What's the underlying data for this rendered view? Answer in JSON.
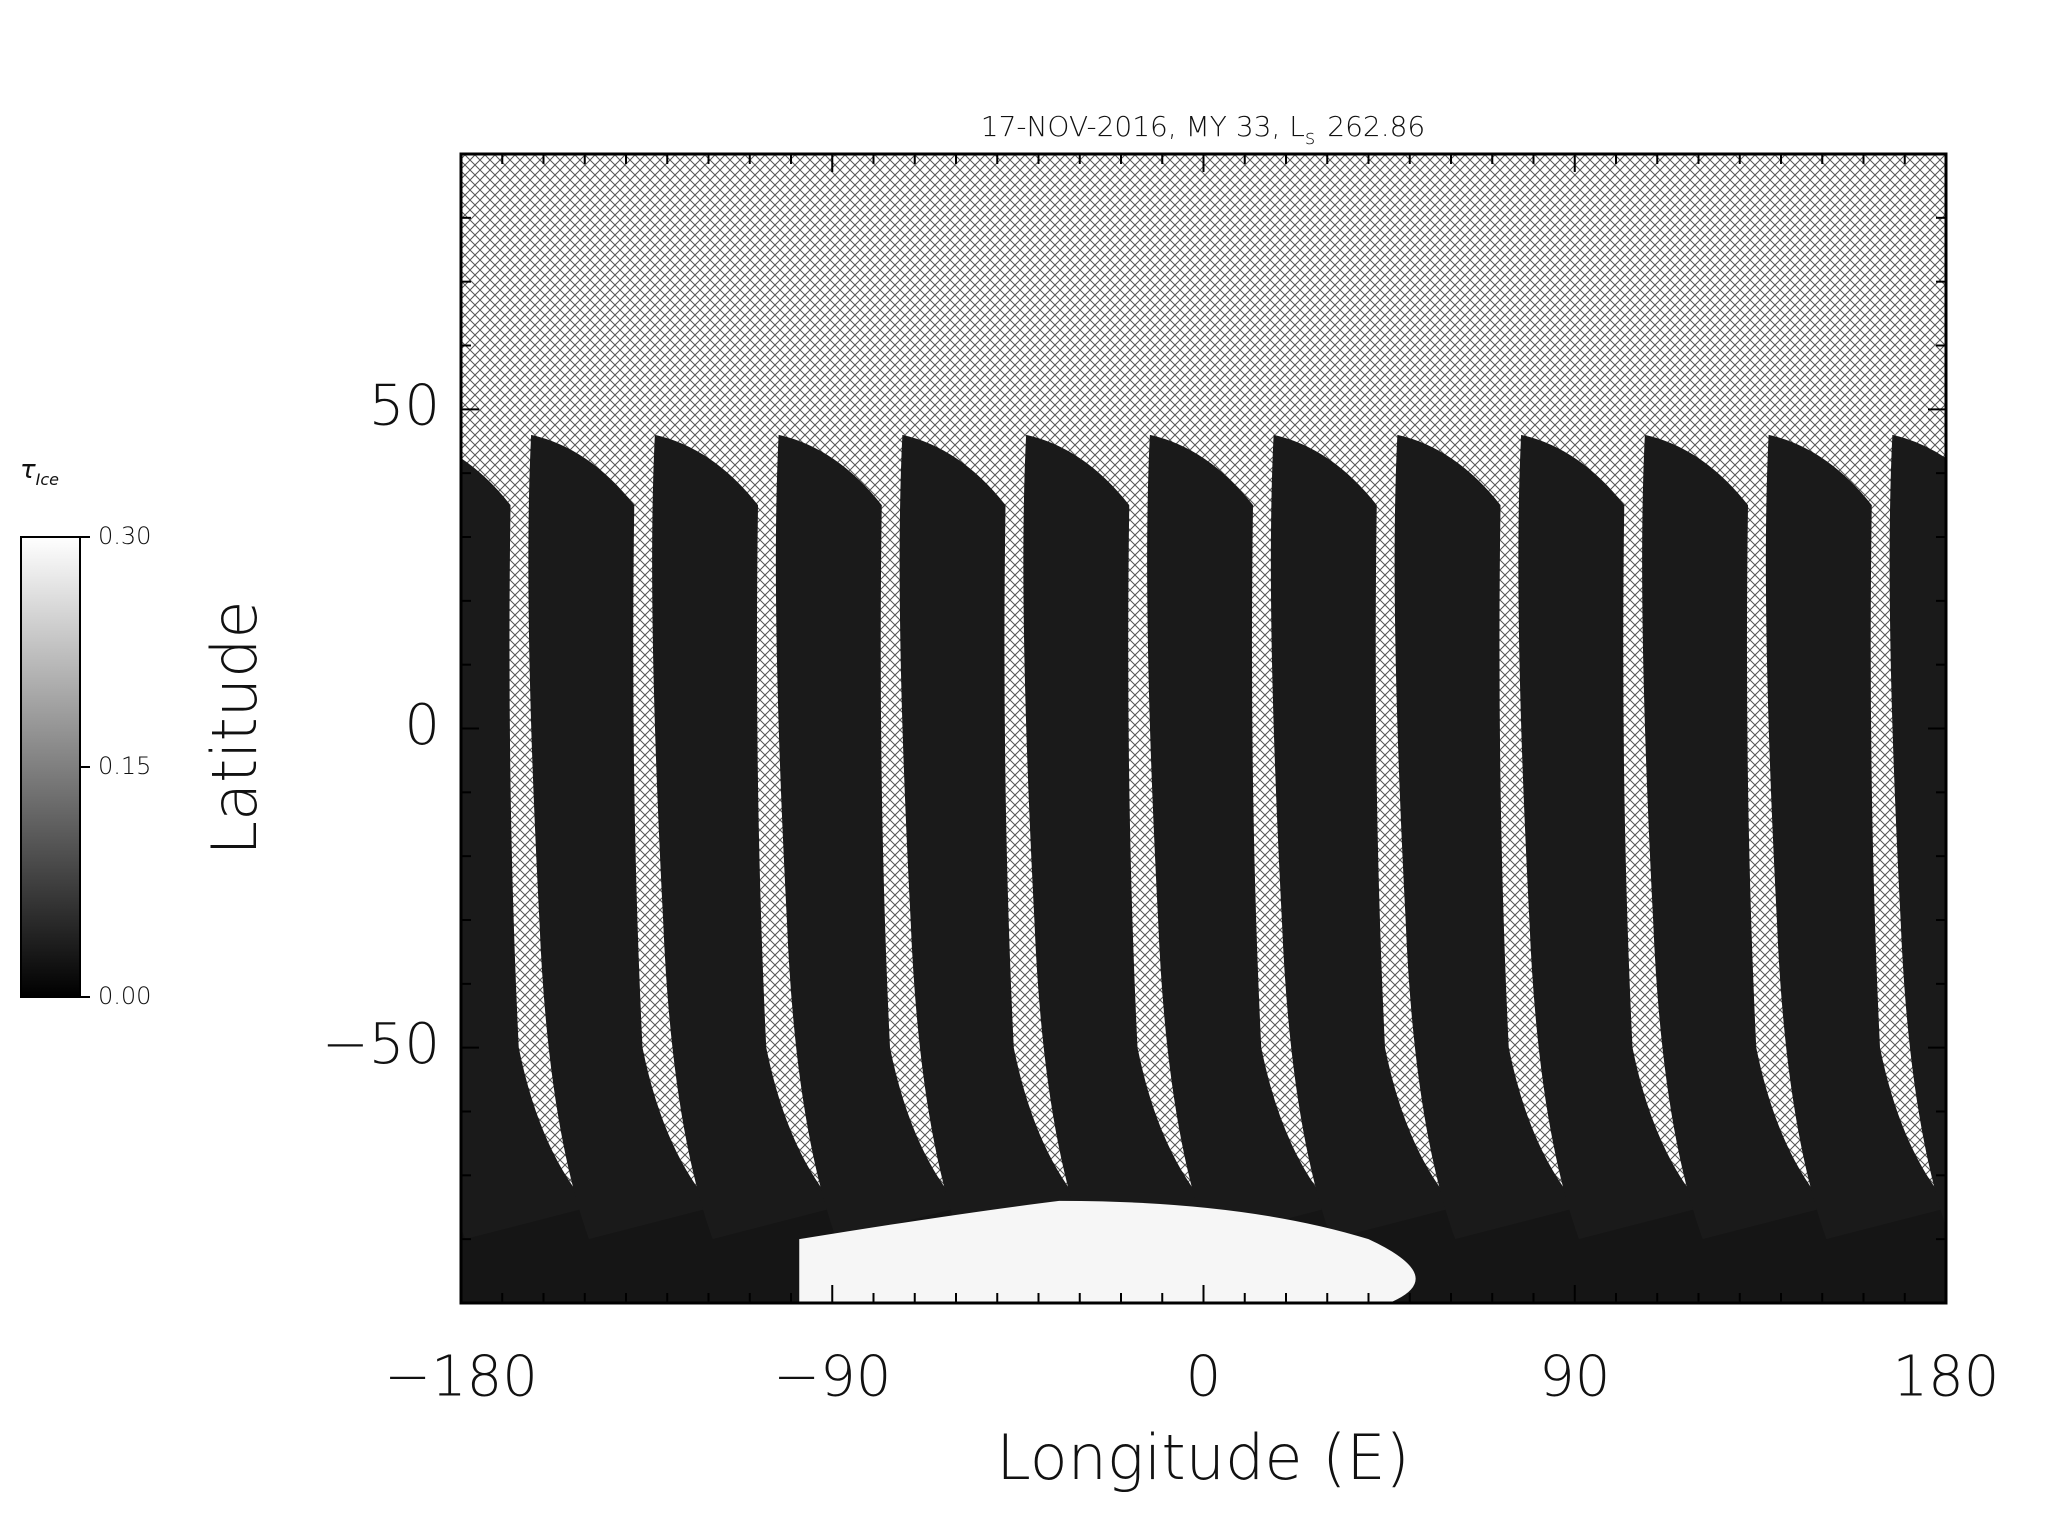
{
  "chart_data": {
    "type": "heatmap",
    "title": "17-NOV-2016, MY 33,  L",
    "title_subscript": "s",
    "title_suffix": "262.86",
    "x_label": "Longitude (E)",
    "y_label": "Latitude",
    "xlim": [
      -180,
      180
    ],
    "xticks": [
      {
        "value": -180,
        "label": "−180"
      },
      {
        "value": -90,
        "label": "−90"
      },
      0,
      90,
      180
    ],
    "xminorticks": [
      -170,
      -160,
      -150,
      -140,
      -130,
      -120,
      -110,
      -100,
      -80,
      -70,
      -60,
      -50,
      -40,
      -30,
      -20,
      -10,
      10,
      20,
      30,
      40,
      50,
      60,
      70,
      80,
      100,
      110,
      120,
      130,
      140,
      150,
      160,
      170
    ],
    "ylim": [
      -90,
      90
    ],
    "yticks": [
      {
        "value": -50,
        "label": "−50"
      },
      0,
      50
    ],
    "yminorticks": [
      -80,
      -70,
      -60,
      -40,
      -30,
      -20,
      -10,
      10,
      20,
      30,
      40,
      60,
      70,
      80
    ],
    "colorbar": {
      "label": "τ",
      "label_subscript": "Ice",
      "lim": [
        0,
        0.3
      ],
      "ticks": [
        {
          "value": 0,
          "label": "0.00"
        },
        {
          "value": 0.15,
          "label": "0.15"
        },
        {
          "value": 0.3,
          "label": "0.30"
        }
      ]
    }
  }
}
